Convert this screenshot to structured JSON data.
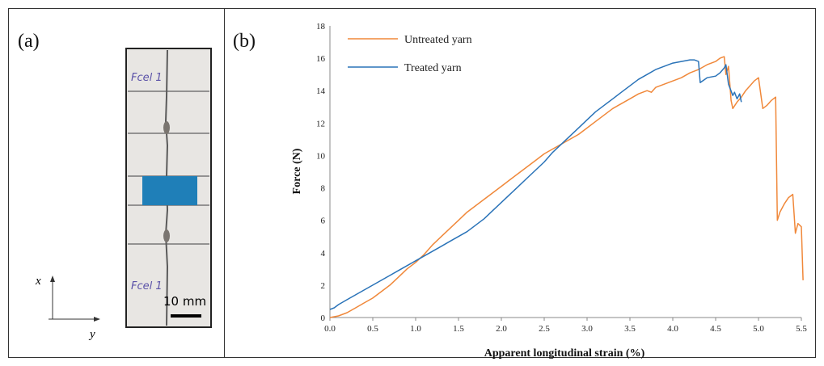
{
  "panels": {
    "a_label": "(a)",
    "b_label": "(b)"
  },
  "photo": {
    "upper_tag": "Fcel 1",
    "lower_tag": "Fcel 1",
    "scale_bar_label": "10 mm",
    "axis_x_label": "x⃗",
    "axis_y_label": "y⃗",
    "tab_color": "#1f7fb8"
  },
  "chart_data": {
    "type": "line",
    "xlabel": "Apparent longitudinal strain (%)",
    "ylabel": "Force (N)",
    "xlim": [
      0,
      5.5
    ],
    "ylim": [
      0,
      18
    ],
    "xticks": [
      "0.0",
      "0.5",
      "1.0",
      "1.5",
      "2.0",
      "2.5",
      "3.0",
      "3.5",
      "4.0",
      "4.5",
      "5.0",
      "5.5"
    ],
    "yticks": [
      "0",
      "2",
      "4",
      "6",
      "8",
      "10",
      "12",
      "14",
      "16",
      "18"
    ],
    "grid": false,
    "legend_position": "top-left",
    "series": [
      {
        "name": "Untreated yarn",
        "color": "#f0883a",
        "x": [
          0.0,
          0.1,
          0.2,
          0.3,
          0.4,
          0.5,
          0.6,
          0.7,
          0.8,
          0.9,
          1.0,
          1.1,
          1.2,
          1.3,
          1.4,
          1.5,
          1.6,
          1.7,
          1.8,
          1.9,
          2.0,
          2.1,
          2.2,
          2.3,
          2.4,
          2.5,
          2.6,
          2.7,
          2.8,
          2.9,
          3.0,
          3.1,
          3.2,
          3.3,
          3.4,
          3.5,
          3.6,
          3.7,
          3.75,
          3.8,
          3.9,
          4.0,
          4.1,
          4.2,
          4.3,
          4.4,
          4.5,
          4.55,
          4.6,
          4.62,
          4.65,
          4.68,
          4.7,
          4.75,
          4.8,
          4.85,
          4.9,
          4.95,
          5.0,
          5.05,
          5.1,
          5.15,
          5.2,
          5.22,
          5.25,
          5.3,
          5.35,
          5.4,
          5.43,
          5.46,
          5.5,
          5.52
        ],
        "y": [
          0.0,
          0.1,
          0.3,
          0.6,
          0.9,
          1.2,
          1.6,
          2.0,
          2.5,
          3.0,
          3.4,
          3.9,
          4.5,
          5.0,
          5.5,
          6.0,
          6.5,
          6.9,
          7.3,
          7.7,
          8.1,
          8.5,
          8.9,
          9.3,
          9.7,
          10.1,
          10.4,
          10.7,
          11.0,
          11.3,
          11.7,
          12.1,
          12.5,
          12.9,
          13.2,
          13.5,
          13.8,
          14.0,
          13.9,
          14.2,
          14.4,
          14.6,
          14.8,
          15.1,
          15.3,
          15.6,
          15.8,
          16.0,
          16.1,
          15.0,
          15.5,
          13.4,
          12.9,
          13.3,
          13.6,
          14.0,
          14.3,
          14.6,
          14.8,
          12.9,
          13.1,
          13.4,
          13.6,
          6.0,
          6.5,
          7.0,
          7.4,
          7.6,
          5.2,
          5.8,
          5.6,
          2.3
        ]
      },
      {
        "name": "Treated yarn",
        "color": "#2a73b8",
        "x": [
          0.0,
          0.05,
          0.1,
          0.2,
          0.3,
          0.4,
          0.5,
          0.6,
          0.7,
          0.8,
          0.9,
          1.0,
          1.1,
          1.2,
          1.3,
          1.4,
          1.5,
          1.6,
          1.7,
          1.8,
          1.9,
          2.0,
          2.1,
          2.2,
          2.3,
          2.4,
          2.5,
          2.6,
          2.7,
          2.8,
          2.9,
          3.0,
          3.1,
          3.2,
          3.3,
          3.4,
          3.5,
          3.6,
          3.7,
          3.8,
          3.9,
          4.0,
          4.1,
          4.2,
          4.25,
          4.3,
          4.32,
          4.4,
          4.5,
          4.55,
          4.6,
          4.62,
          4.65,
          4.7,
          4.72,
          4.75,
          4.78,
          4.8
        ],
        "y": [
          0.5,
          0.6,
          0.8,
          1.1,
          1.4,
          1.7,
          2.0,
          2.3,
          2.6,
          2.9,
          3.2,
          3.5,
          3.8,
          4.1,
          4.4,
          4.7,
          5.0,
          5.3,
          5.7,
          6.1,
          6.6,
          7.1,
          7.6,
          8.1,
          8.6,
          9.1,
          9.6,
          10.2,
          10.7,
          11.2,
          11.7,
          12.2,
          12.7,
          13.1,
          13.5,
          13.9,
          14.3,
          14.7,
          15.0,
          15.3,
          15.5,
          15.7,
          15.8,
          15.9,
          15.9,
          15.8,
          14.5,
          14.8,
          14.9,
          15.1,
          15.4,
          15.6,
          14.4,
          13.7,
          13.9,
          13.5,
          13.8,
          13.3
        ]
      }
    ]
  }
}
